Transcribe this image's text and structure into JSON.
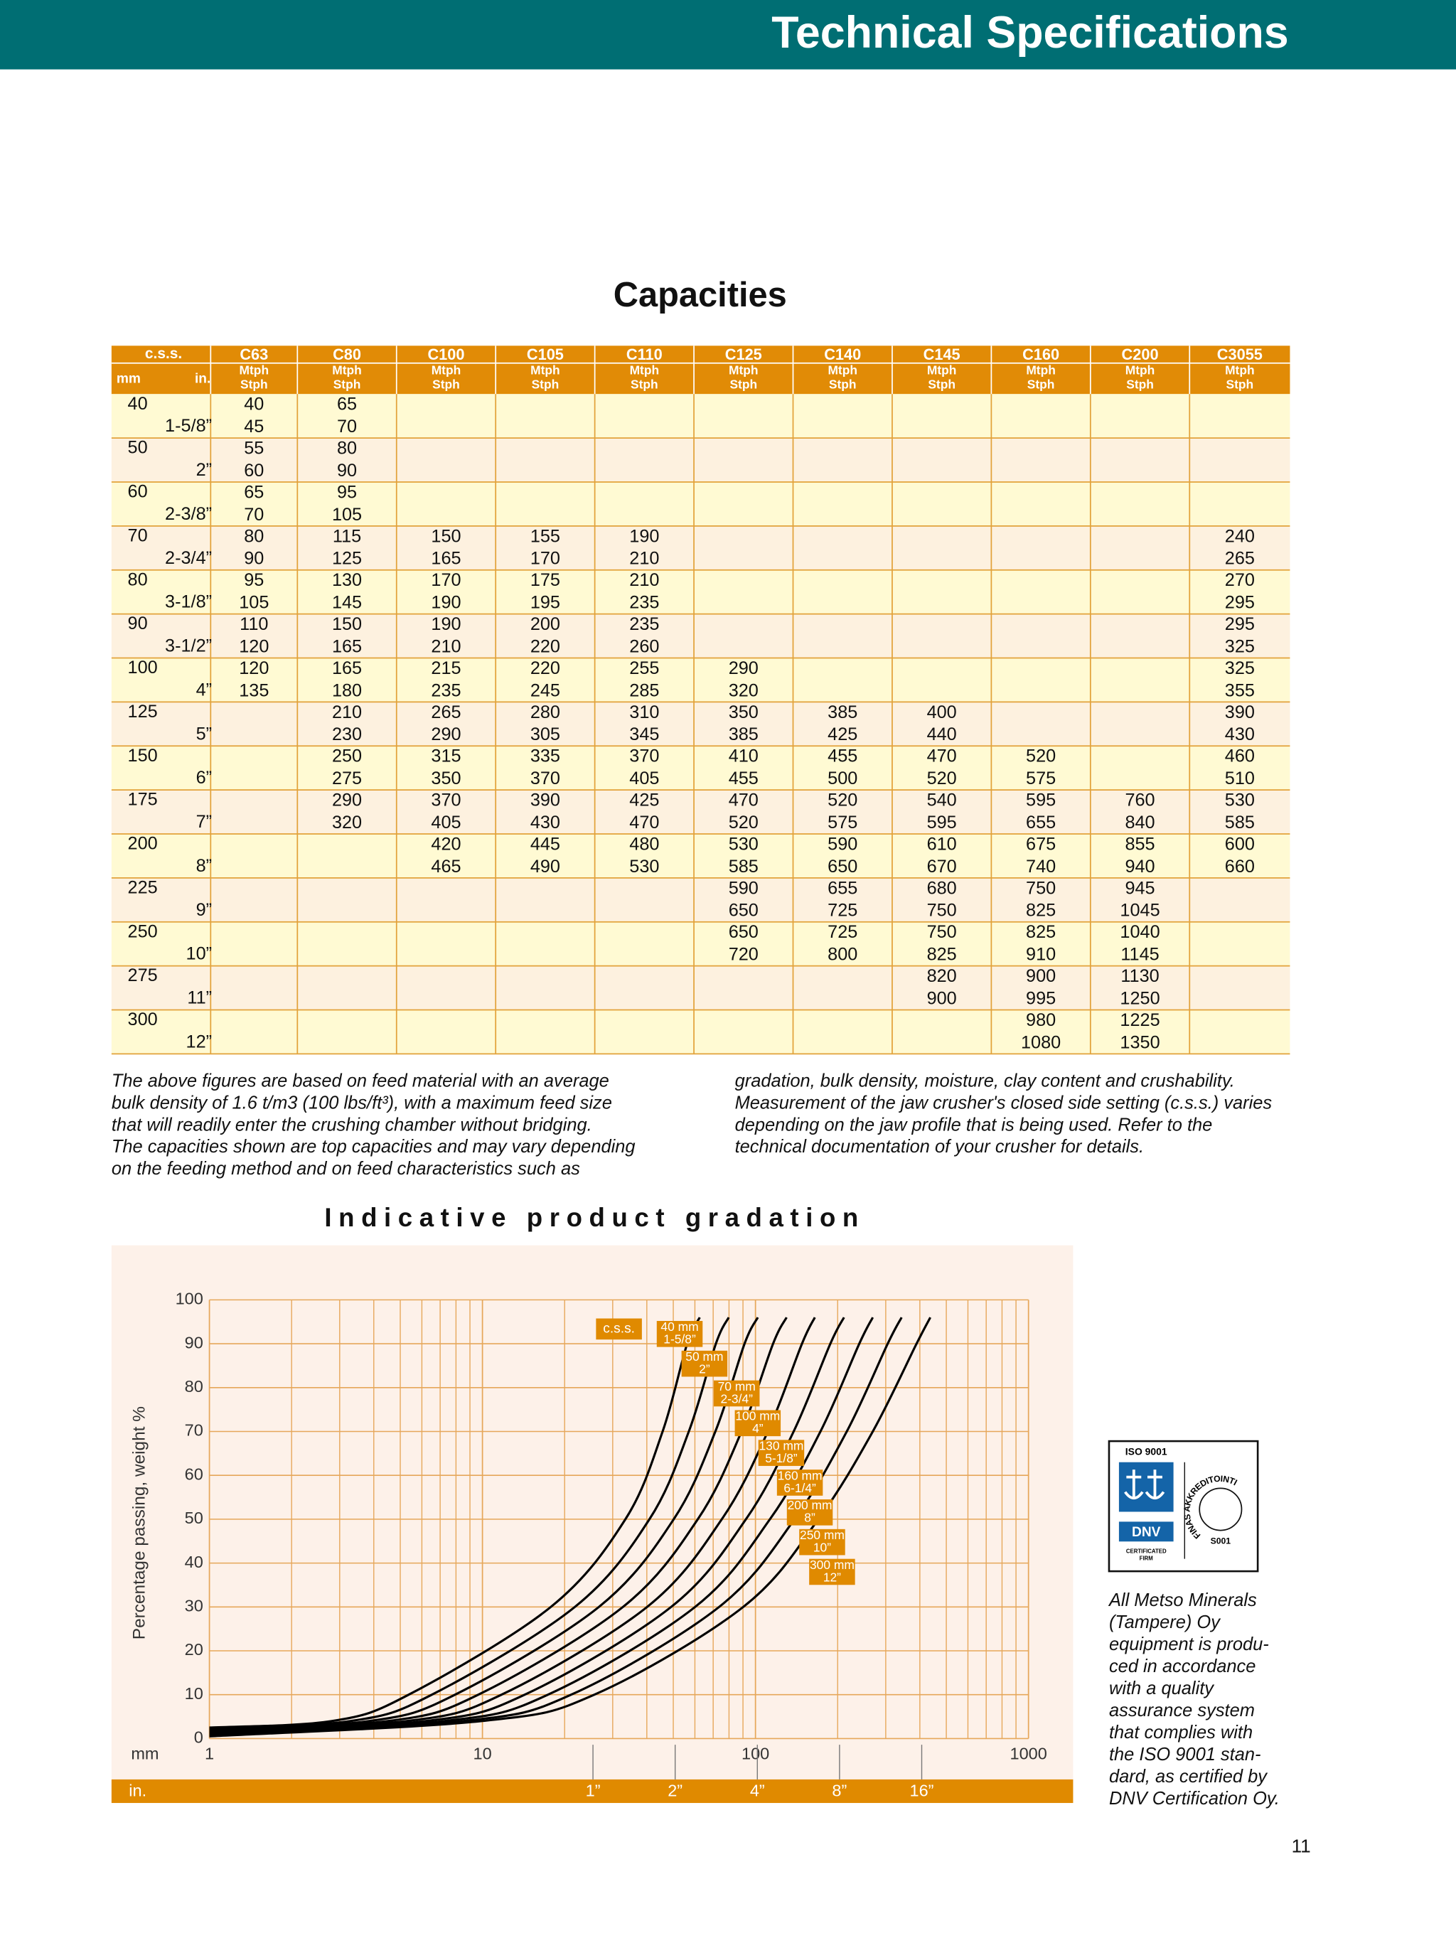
{
  "header": {
    "title": "Technical Specifications"
  },
  "capacities": {
    "title": "Capacities",
    "css": "c.s.s.",
    "mm": "mm",
    "in": "in.",
    "models": [
      "C63",
      "C80",
      "C100",
      "C105",
      "C110",
      "C125",
      "C140",
      "C145",
      "C160",
      "C200",
      "C3055"
    ],
    "units": [
      "Mtph",
      "Stph"
    ],
    "rows": [
      {
        "mm": "40",
        "in": "1-5/8”",
        "cells": [
          [
            40,
            45
          ],
          [
            65,
            70
          ],
          null,
          null,
          null,
          null,
          null,
          null,
          null,
          null,
          null
        ]
      },
      {
        "mm": "50",
        "in": "2”",
        "cells": [
          [
            55,
            60
          ],
          [
            80,
            90
          ],
          null,
          null,
          null,
          null,
          null,
          null,
          null,
          null,
          null
        ]
      },
      {
        "mm": "60",
        "in": "2-3/8”",
        "cells": [
          [
            65,
            70
          ],
          [
            95,
            105
          ],
          null,
          null,
          null,
          null,
          null,
          null,
          null,
          null,
          null
        ]
      },
      {
        "mm": "70",
        "in": "2-3/4”",
        "cells": [
          [
            80,
            90
          ],
          [
            115,
            125
          ],
          [
            150,
            165
          ],
          [
            155,
            170
          ],
          [
            190,
            210
          ],
          null,
          null,
          null,
          null,
          null,
          [
            240,
            265
          ]
        ]
      },
      {
        "mm": "80",
        "in": "3-1/8”",
        "cells": [
          [
            95,
            105
          ],
          [
            130,
            145
          ],
          [
            170,
            190
          ],
          [
            175,
            195
          ],
          [
            210,
            235
          ],
          null,
          null,
          null,
          null,
          null,
          [
            270,
            295
          ]
        ]
      },
      {
        "mm": "90",
        "in": "3-1/2”",
        "cells": [
          [
            110,
            120
          ],
          [
            150,
            165
          ],
          [
            190,
            210
          ],
          [
            200,
            220
          ],
          [
            235,
            260
          ],
          null,
          null,
          null,
          null,
          null,
          [
            295,
            325
          ]
        ]
      },
      {
        "mm": "100",
        "in": "4”",
        "cells": [
          [
            120,
            135
          ],
          [
            165,
            180
          ],
          [
            215,
            235
          ],
          [
            220,
            245
          ],
          [
            255,
            285
          ],
          [
            290,
            320
          ],
          null,
          null,
          null,
          null,
          [
            325,
            355
          ]
        ]
      },
      {
        "mm": "125",
        "in": "5”",
        "cells": [
          null,
          [
            210,
            230
          ],
          [
            265,
            290
          ],
          [
            280,
            305
          ],
          [
            310,
            345
          ],
          [
            350,
            385
          ],
          [
            385,
            425
          ],
          [
            400,
            440
          ],
          null,
          null,
          [
            390,
            430
          ]
        ]
      },
      {
        "mm": "150",
        "in": "6”",
        "cells": [
          null,
          [
            250,
            275
          ],
          [
            315,
            350
          ],
          [
            335,
            370
          ],
          [
            370,
            405
          ],
          [
            410,
            455
          ],
          [
            455,
            500
          ],
          [
            470,
            520
          ],
          [
            520,
            575
          ],
          null,
          [
            460,
            510
          ]
        ]
      },
      {
        "mm": "175",
        "in": "7”",
        "cells": [
          null,
          [
            290,
            320
          ],
          [
            370,
            405
          ],
          [
            390,
            430
          ],
          [
            425,
            470
          ],
          [
            470,
            520
          ],
          [
            520,
            575
          ],
          [
            540,
            595
          ],
          [
            595,
            655
          ],
          [
            760,
            840
          ],
          [
            530,
            585
          ]
        ]
      },
      {
        "mm": "200",
        "in": "8”",
        "cells": [
          null,
          null,
          [
            420,
            465
          ],
          [
            445,
            490
          ],
          [
            480,
            530
          ],
          [
            530,
            585
          ],
          [
            590,
            650
          ],
          [
            610,
            670
          ],
          [
            675,
            740
          ],
          [
            855,
            940
          ],
          [
            600,
            660
          ]
        ]
      },
      {
        "mm": "225",
        "in": "9”",
        "cells": [
          null,
          null,
          null,
          null,
          null,
          [
            590,
            650
          ],
          [
            655,
            725
          ],
          [
            680,
            750
          ],
          [
            750,
            825
          ],
          [
            945,
            1045
          ],
          null
        ]
      },
      {
        "mm": "250",
        "in": "10”",
        "cells": [
          null,
          null,
          null,
          null,
          null,
          [
            650,
            720
          ],
          [
            725,
            800
          ],
          [
            750,
            825
          ],
          [
            825,
            910
          ],
          [
            1040,
            1145
          ],
          null
        ]
      },
      {
        "mm": "275",
        "in": "11”",
        "cells": [
          null,
          null,
          null,
          null,
          null,
          null,
          null,
          [
            820,
            900
          ],
          [
            900,
            995
          ],
          [
            1130,
            1250
          ],
          null
        ]
      },
      {
        "mm": "300",
        "in": "12”",
        "cells": [
          null,
          null,
          null,
          null,
          null,
          null,
          null,
          null,
          [
            980,
            1080
          ],
          [
            1225,
            1350
          ],
          null
        ]
      }
    ]
  },
  "note": {
    "left": [
      "The above figures are based on feed material with an average",
      "bulk density of 1.6 t/m3 (100 lbs/ft³), with a maximum feed size",
      "that will readily enter the crushing chamber without bridging.",
      "The capacities shown are top capacities and may vary depending",
      "on the feeding method and on feed characteristics such as"
    ],
    "right": [
      "gradation, bulk density, moisture, clay content and crushability.",
      "Measurement of the jaw crusher's closed side setting (c.s.s.) varies",
      "depending on the jaw profile that is being used. Refer to the",
      "technical documentation of your crusher for details."
    ]
  },
  "chart_data": {
    "type": "line",
    "title": "Indicative product gradation",
    "ylabel": "Percentage passing, weight %",
    "x_unit": "mm",
    "in_unit": "in.",
    "css_label": "c.s.s.",
    "log_x": true,
    "grid": true,
    "xlim": [
      1,
      1000
    ],
    "xticks": [
      1,
      10,
      100,
      1000
    ],
    "ylim": [
      0,
      100
    ],
    "yticks": [
      0,
      10,
      20,
      30,
      40,
      50,
      60,
      70,
      80,
      90,
      100
    ],
    "in_ticks": [
      {
        "value": 25.4,
        "label": "1”"
      },
      {
        "value": 50.8,
        "label": "2”"
      },
      {
        "value": 101.6,
        "label": "4”"
      },
      {
        "value": 203.2,
        "label": "8”"
      },
      {
        "value": 406.4,
        "label": "16”"
      }
    ],
    "series": [
      {
        "name": "40 mm",
        "sub": "1-5/8”",
        "color": "#000000",
        "x": [
          1,
          2.82,
          5.37,
          17.8,
          33.4,
          45.7,
          56.2,
          62.5
        ],
        "values": [
          2.5,
          4,
          10,
          30,
          50,
          70,
          90,
          96
        ]
      },
      {
        "name": "50 mm",
        "sub": "2”",
        "color": "#000000",
        "x": [
          1,
          3.3,
          6.53,
          21.8,
          40.9,
          57.0,
          71.6,
          79.8
        ],
        "values": [
          2.25,
          4,
          10,
          30,
          50,
          70,
          90,
          96
        ]
      },
      {
        "name": "70 mm",
        "sub": "2-3/4”",
        "color": "#000000",
        "x": [
          1,
          3.87,
          7.94,
          26.7,
          50.2,
          71.3,
          91.2,
          102
        ],
        "values": [
          2,
          4,
          10,
          30,
          50,
          70,
          90,
          96
        ]
      },
      {
        "name": "100 mm",
        "sub": "4”",
        "color": "#000000",
        "x": [
          1,
          4.53,
          9.66,
          32.7,
          61.5,
          88.9,
          116,
          130
        ],
        "values": [
          1.75,
          4,
          10,
          30,
          50,
          70,
          90,
          96
        ]
      },
      {
        "name": "130 mm",
        "sub": "5-1/8”",
        "color": "#000000",
        "x": [
          1,
          5.31,
          11.75,
          40.1,
          75.3,
          111,
          148,
          165
        ],
        "values": [
          1.5,
          4,
          10,
          30,
          50,
          70,
          90,
          96
        ]
      },
      {
        "name": "160 mm",
        "sub": "6-1/4”",
        "color": "#000000",
        "x": [
          1,
          6.22,
          14.29,
          49.1,
          92.3,
          138,
          188,
          211
        ],
        "values": [
          1.25,
          4,
          10,
          30,
          50,
          70,
          90,
          96
        ]
      },
      {
        "name": "200 mm",
        "sub": "8”",
        "color": "#000000",
        "x": [
          1,
          7.28,
          17.38,
          60.1,
          113,
          173,
          240,
          269
        ],
        "values": [
          1,
          4,
          10,
          30,
          50,
          70,
          90,
          96
        ]
      },
      {
        "name": "250 mm",
        "sub": "10”",
        "color": "#000000",
        "x": [
          1,
          8.53,
          21.13,
          73.6,
          139,
          216,
          305,
          343
        ],
        "values": [
          0.75,
          4,
          10,
          30,
          50,
          70,
          90,
          96
        ]
      },
      {
        "name": "300 mm",
        "sub": "12”",
        "color": "#000000",
        "x": [
          1,
          10.0,
          25.7,
          90.2,
          170,
          269,
          389,
          437
        ],
        "values": [
          0.5,
          4,
          10,
          30,
          50,
          70,
          90,
          96
        ]
      }
    ]
  },
  "certificate": {
    "iso": "ISO 9001",
    "dnv": "DNV",
    "firm": [
      "CERTIFICATED",
      "FIRM"
    ],
    "finas": "FINAS AKKREDITOINTI",
    "code": "S001",
    "caption": [
      "All Metso Minerals",
      "(Tampere) Oy",
      "equipment is produ-",
      "ced in accordance",
      "with a quality",
      "assurance system",
      "that complies with",
      "the ISO 9001 stan-",
      "dard, as certified by",
      "DNV Certification Oy."
    ]
  },
  "page_number": "11"
}
